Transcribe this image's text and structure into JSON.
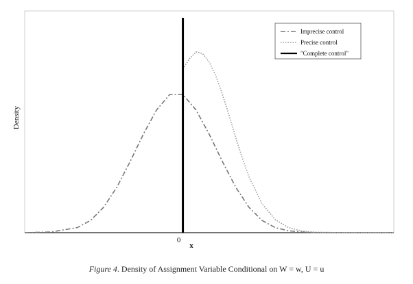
{
  "chart_data": {
    "type": "line",
    "title": "",
    "xlabel": "x",
    "ylabel": "Density",
    "x_ticks": [
      {
        "value": 0,
        "label": "0"
      }
    ],
    "xlim": [
      -3.0,
      4.0
    ],
    "ylim": [
      0,
      1.3
    ],
    "grid": false,
    "legend_position": "top-right",
    "series": [
      {
        "name": "Imprecise control",
        "style": "dash-dot",
        "color": "#777777",
        "x": [
          -3.0,
          -2.5,
          -2.0,
          -1.75,
          -1.5,
          -1.25,
          -1.0,
          -0.75,
          -0.5,
          -0.25,
          0.0,
          0.25,
          0.5,
          0.75,
          1.0,
          1.25,
          1.5,
          1.75,
          2.0,
          2.25,
          2.5,
          2.75,
          3.0,
          3.5,
          4.0
        ],
        "y": [
          0.0,
          0.004,
          0.03,
          0.072,
          0.15,
          0.268,
          0.417,
          0.577,
          0.719,
          0.81,
          0.81,
          0.719,
          0.577,
          0.417,
          0.268,
          0.15,
          0.072,
          0.03,
          0.011,
          0.004,
          0.001,
          0.0,
          0.0,
          0.0,
          0.0
        ]
      },
      {
        "name": "Precise control",
        "style": "dotted",
        "color": "#999999",
        "x": [
          0.0,
          0.125,
          0.25,
          0.375,
          0.5,
          0.625,
          0.75,
          0.875,
          1.0,
          1.125,
          1.25,
          1.5,
          1.75,
          2.0,
          2.25,
          2.5,
          3.0,
          4.0
        ],
        "y": [
          0.96,
          1.02,
          1.06,
          1.05,
          1.0,
          0.92,
          0.81,
          0.69,
          0.56,
          0.44,
          0.33,
          0.17,
          0.077,
          0.03,
          0.01,
          0.003,
          0.0,
          0.0
        ]
      },
      {
        "name": "\"Complete control\"",
        "style": "solid",
        "color": "#000000",
        "x": [
          0.0,
          0.0
        ],
        "y": [
          0.0,
          1.26
        ]
      }
    ]
  },
  "caption": {
    "figure_label": "Figure 4",
    "text": ". Density of Assignment Variable Conditional on W = w, U = u"
  }
}
